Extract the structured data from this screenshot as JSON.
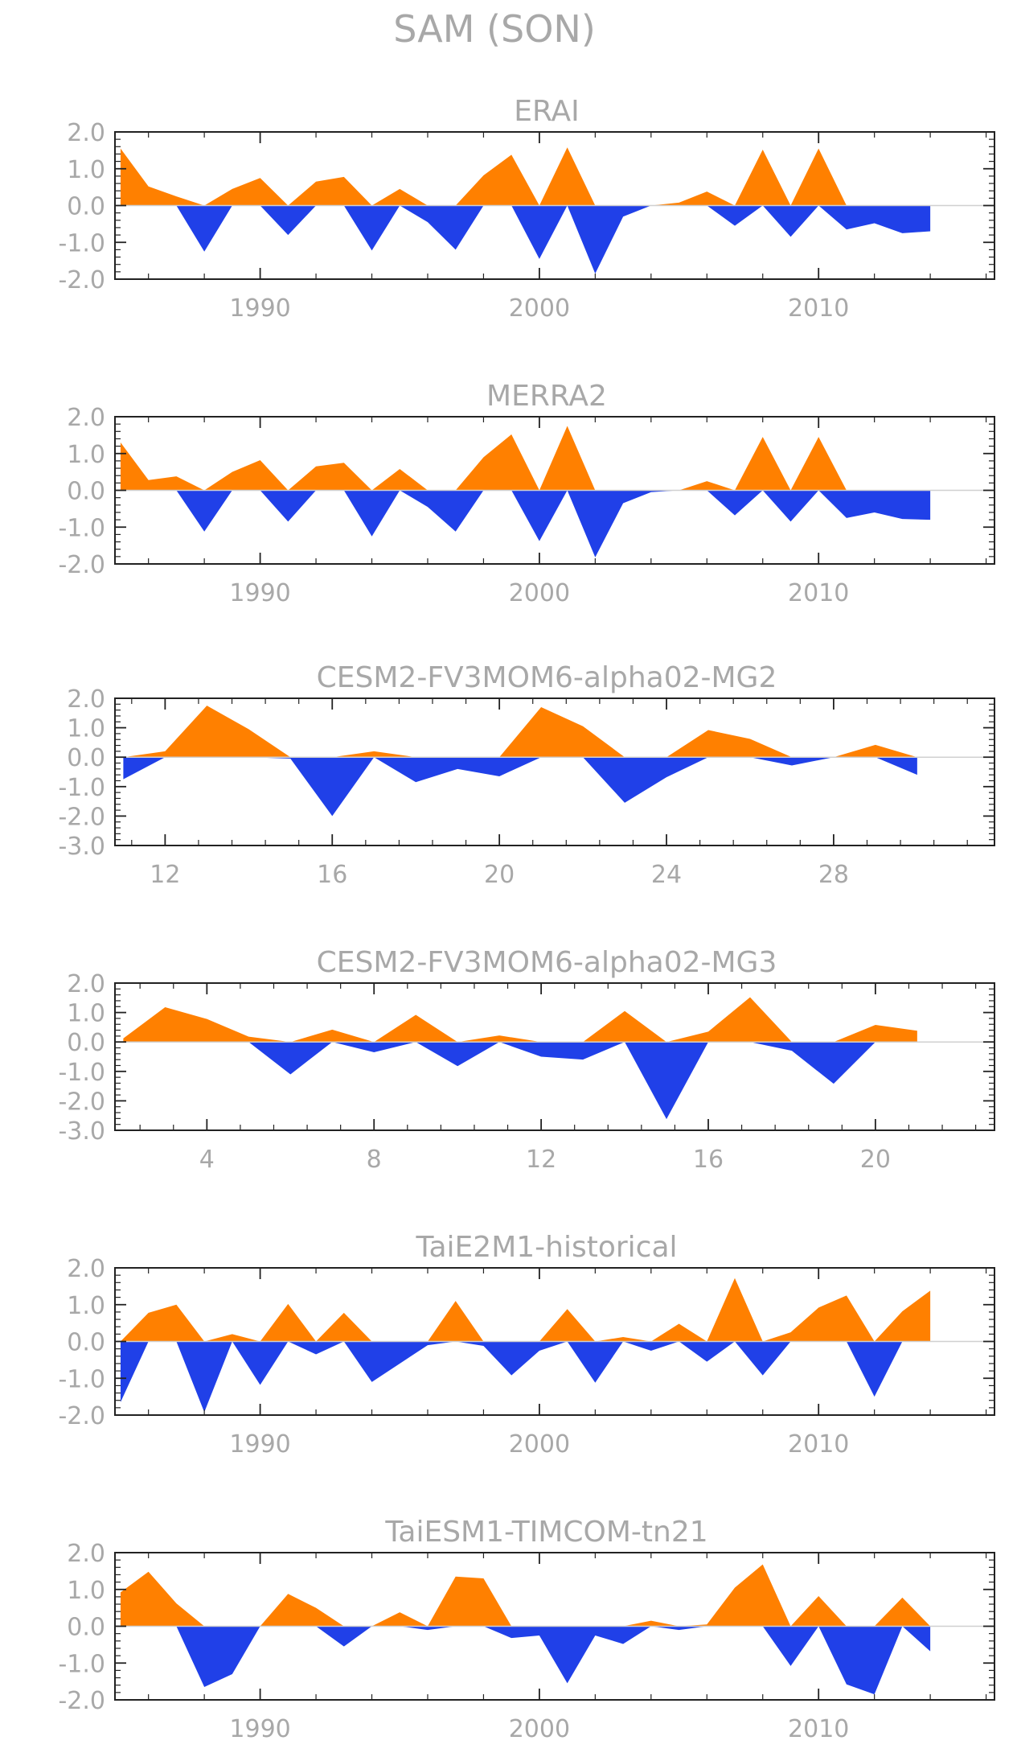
{
  "main_title": "SAM (SON)",
  "colors": {
    "positive": "#ff8000",
    "negative": "#2040e8",
    "axis": "#222222",
    "text": "#a8a8a8",
    "zero_line": "#d0d0d0"
  },
  "chart_data": [
    {
      "type": "area",
      "title": "ERAI",
      "x": [
        1985,
        1986,
        1987,
        1988,
        1989,
        1990,
        1991,
        1992,
        1993,
        1994,
        1995,
        1996,
        1997,
        1998,
        1999,
        2000,
        2001,
        2002,
        2003,
        2004,
        2005,
        2006,
        2007,
        2008,
        2009,
        2010,
        2011,
        2012,
        2013,
        2014
      ],
      "values": [
        1.55,
        0.52,
        0.25,
        -1.25,
        0.45,
        0.75,
        -0.8,
        0.65,
        0.78,
        -1.22,
        0.45,
        -0.45,
        -1.2,
        0.82,
        1.38,
        -1.45,
        1.58,
        -1.85,
        -0.3,
        0.0,
        0.08,
        0.38,
        -0.55,
        1.52,
        -0.85,
        1.55,
        -0.65,
        -0.48,
        -0.75,
        -0.7
      ],
      "xlim": [
        1984.8,
        2016.3
      ],
      "ylim": [
        -2.0,
        2.0
      ],
      "yticks": [
        "-2.0",
        "-1.0",
        "0.0",
        "1.0",
        "2.0"
      ],
      "xticks": [
        "1990",
        "2000",
        "2010"
      ]
    },
    {
      "type": "area",
      "title": "MERRA2",
      "x": [
        1985,
        1986,
        1987,
        1988,
        1989,
        1990,
        1991,
        1992,
        1993,
        1994,
        1995,
        1996,
        1997,
        1998,
        1999,
        2000,
        2001,
        2002,
        2003,
        2004,
        2005,
        2006,
        2007,
        2008,
        2009,
        2010,
        2011,
        2012,
        2013,
        2014
      ],
      "values": [
        1.3,
        0.28,
        0.38,
        -1.12,
        0.5,
        0.82,
        -0.85,
        0.65,
        0.75,
        -1.25,
        0.58,
        -0.45,
        -1.12,
        0.9,
        1.52,
        -1.38,
        1.75,
        -1.82,
        -0.35,
        -0.05,
        0.0,
        0.25,
        -0.68,
        1.45,
        -0.85,
        1.45,
        -0.75,
        -0.6,
        -0.78,
        -0.8
      ],
      "xlim": [
        1984.8,
        2016.3
      ],
      "ylim": [
        -2.0,
        2.0
      ],
      "yticks": [
        "-2.0",
        "-1.0",
        "0.0",
        "1.0",
        "2.0"
      ],
      "xticks": [
        "1990",
        "2000",
        "2010"
      ]
    },
    {
      "type": "area",
      "title": "CESM2-FV3MOM6-alpha02-MG2",
      "x": [
        11,
        12,
        13,
        14,
        15,
        16,
        17,
        18,
        19,
        20,
        21,
        22,
        23,
        24,
        25,
        26,
        27,
        28,
        29,
        30
      ],
      "values": [
        -0.75,
        0.2,
        1.75,
        0.95,
        -0.05,
        -2.0,
        0.2,
        -0.85,
        -0.4,
        -0.65,
        1.7,
        1.05,
        -1.55,
        -0.68,
        0.92,
        0.62,
        -0.28,
        0.0,
        0.42,
        -0.6
      ],
      "xlim": [
        10.8,
        31.85
      ],
      "ylim": [
        -3.0,
        2.0
      ],
      "yticks": [
        "-3.0",
        "-2.0",
        "-1.0",
        "0.0",
        "1.0",
        "2.0"
      ],
      "xticks": [
        "12",
        "16",
        "20",
        "24",
        "28"
      ]
    },
    {
      "type": "area",
      "title": "CESM2-FV3MOM6-alpha02-MG3",
      "x": [
        2,
        3,
        4,
        5,
        6,
        7,
        8,
        9,
        10,
        11,
        12,
        13,
        14,
        15,
        16,
        17,
        18,
        19,
        20,
        21
      ],
      "values": [
        0.12,
        1.18,
        0.78,
        0.18,
        -1.1,
        0.42,
        -0.35,
        0.92,
        -0.82,
        0.22,
        -0.5,
        -0.6,
        1.05,
        -2.62,
        0.35,
        1.52,
        -0.3,
        -1.42,
        0.58,
        0.38
      ],
      "xlim": [
        1.8,
        22.85
      ],
      "ylim": [
        -3.0,
        2.0
      ],
      "yticks": [
        "-3.0",
        "-2.0",
        "-1.0",
        "0.0",
        "1.0",
        "2.0"
      ],
      "xticks": [
        "4",
        "8",
        "12",
        "16",
        "20"
      ]
    },
    {
      "type": "area",
      "title": "TaiE2M1-historical",
      "x": [
        1985,
        1986,
        1987,
        1988,
        1989,
        1990,
        1991,
        1992,
        1993,
        1994,
        1995,
        1996,
        1997,
        1998,
        1999,
        2000,
        2001,
        2002,
        2003,
        2004,
        2005,
        2006,
        2007,
        2008,
        2009,
        2010,
        2011,
        2012,
        2013,
        2014
      ],
      "values": [
        -1.65,
        0.78,
        1.0,
        -1.92,
        0.2,
        -1.18,
        1.02,
        -0.35,
        0.78,
        -1.1,
        -0.6,
        -0.1,
        1.1,
        -0.12,
        -0.92,
        -0.25,
        0.88,
        -1.12,
        0.12,
        -0.25,
        0.48,
        -0.55,
        1.72,
        -0.92,
        0.25,
        0.92,
        1.25,
        -1.5,
        0.82,
        1.38
      ],
      "xlim": [
        1984.8,
        2016.3
      ],
      "ylim": [
        -2.0,
        2.0
      ],
      "yticks": [
        "-2.0",
        "-1.0",
        "0.0",
        "1.0",
        "2.0"
      ],
      "xticks": [
        "1990",
        "2000",
        "2010"
      ]
    },
    {
      "type": "area",
      "title": "TaiESM1-TIMCOM-tn21",
      "x": [
        1985,
        1986,
        1987,
        1988,
        1989,
        1990,
        1991,
        1992,
        1993,
        1994,
        1995,
        1996,
        1997,
        1998,
        1999,
        2000,
        2001,
        2002,
        2003,
        2004,
        2005,
        2006,
        2007,
        2008,
        2009,
        2010,
        2011,
        2012,
        2013,
        2014
      ],
      "values": [
        0.92,
        1.48,
        0.62,
        -1.65,
        -1.3,
        0.0,
        0.88,
        0.5,
        -0.55,
        0.0,
        0.38,
        -0.1,
        1.35,
        1.3,
        -0.32,
        -0.25,
        -1.55,
        -0.25,
        -0.48,
        0.15,
        -0.1,
        0.05,
        1.05,
        1.68,
        -1.08,
        0.82,
        -1.58,
        -1.85,
        0.78,
        -0.68
      ],
      "xlim": [
        1984.8,
        2016.3
      ],
      "ylim": [
        -2.0,
        2.0
      ],
      "yticks": [
        "-2.0",
        "-1.0",
        "0.0",
        "1.0",
        "2.0"
      ],
      "xticks": [
        "1990",
        "2000",
        "2010"
      ]
    }
  ]
}
